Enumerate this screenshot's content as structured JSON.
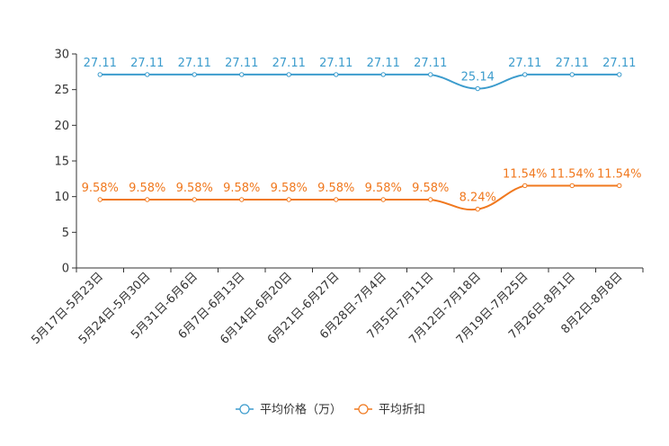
{
  "chart_data": {
    "type": "line",
    "categories": [
      "5月17日-5月23日",
      "5月24日-5月30日",
      "5月31日-6月6日",
      "6月7日-6月13日",
      "6月14日-6月20日",
      "6月21日-6月27日",
      "6月28日-7月4日",
      "7月5日-7月11日",
      "7月12日-7月18日",
      "7月19日-7月25日",
      "7月26日-8月1日",
      "8月2日-8月8日"
    ],
    "ylim": [
      0,
      30
    ],
    "yticks": [
      0,
      5,
      10,
      15,
      20,
      25,
      30
    ],
    "grid": false,
    "legend_position": "bottom-center",
    "series": [
      {
        "name": "平均价格（万）",
        "color": "#3c9ccd",
        "values": [
          27.11,
          27.11,
          27.11,
          27.11,
          27.11,
          27.11,
          27.11,
          27.11,
          25.14,
          27.11,
          27.11,
          27.11
        ],
        "labels": [
          "27.11",
          "27.11",
          "27.11",
          "27.11",
          "27.11",
          "27.11",
          "27.11",
          "27.11",
          "25.14",
          "27.11",
          "27.11",
          "27.11"
        ]
      },
      {
        "name": "平均折扣",
        "color": "#f0781e",
        "values": [
          9.58,
          9.58,
          9.58,
          9.58,
          9.58,
          9.58,
          9.58,
          9.58,
          8.24,
          11.54,
          11.54,
          11.54
        ],
        "labels": [
          "9.58%",
          "9.58%",
          "9.58%",
          "9.58%",
          "9.58%",
          "9.58%",
          "9.58%",
          "9.58%",
          "8.24%",
          "11.54%",
          "11.54%",
          "11.54%"
        ]
      }
    ]
  }
}
